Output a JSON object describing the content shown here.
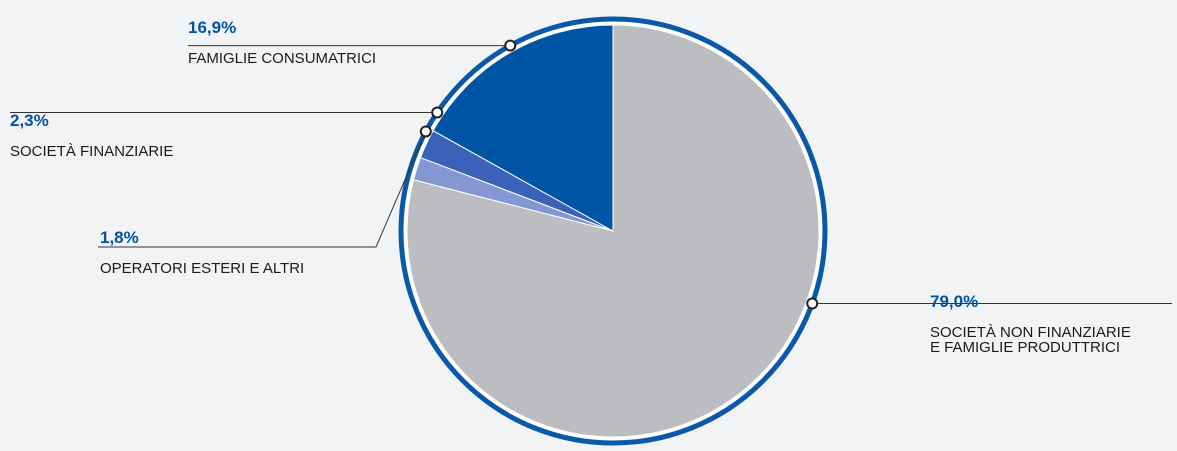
{
  "chart_data": {
    "type": "pie",
    "series": [
      {
        "name": "Società non finanziarie e famiglie produttrici",
        "value_label": "79,0%",
        "label_lines": [
          "SOCIETÀ NON FINANZIARIE",
          "E FAMIGLIE PRODUTTRICI"
        ],
        "value": 79.0,
        "color": "#bcbdc0"
      },
      {
        "name": "Operatori esteri e altri",
        "value_label": "1,8%",
        "label_lines": [
          "OPERATORI ESTERI E ALTRI"
        ],
        "value": 1.8,
        "color": "#8497d3"
      },
      {
        "name": "Società finanziarie",
        "value_label": "2,3%",
        "label_lines": [
          "SOCIETÀ FINANZIARIE"
        ],
        "value": 2.3,
        "color": "#3b62b8"
      },
      {
        "name": "Famiglie consumatrici",
        "value_label": "16,9%",
        "label_lines": [
          "FAMIGLIE CONSUMATRICI"
        ],
        "value": 16.9,
        "color": "#0054a6"
      }
    ],
    "start_angle": "12 o'clock",
    "direction": "clockwise",
    "accent_color": "#0054a6",
    "ring_color": "#0a58a8",
    "label_color": "#1b1b1b"
  }
}
